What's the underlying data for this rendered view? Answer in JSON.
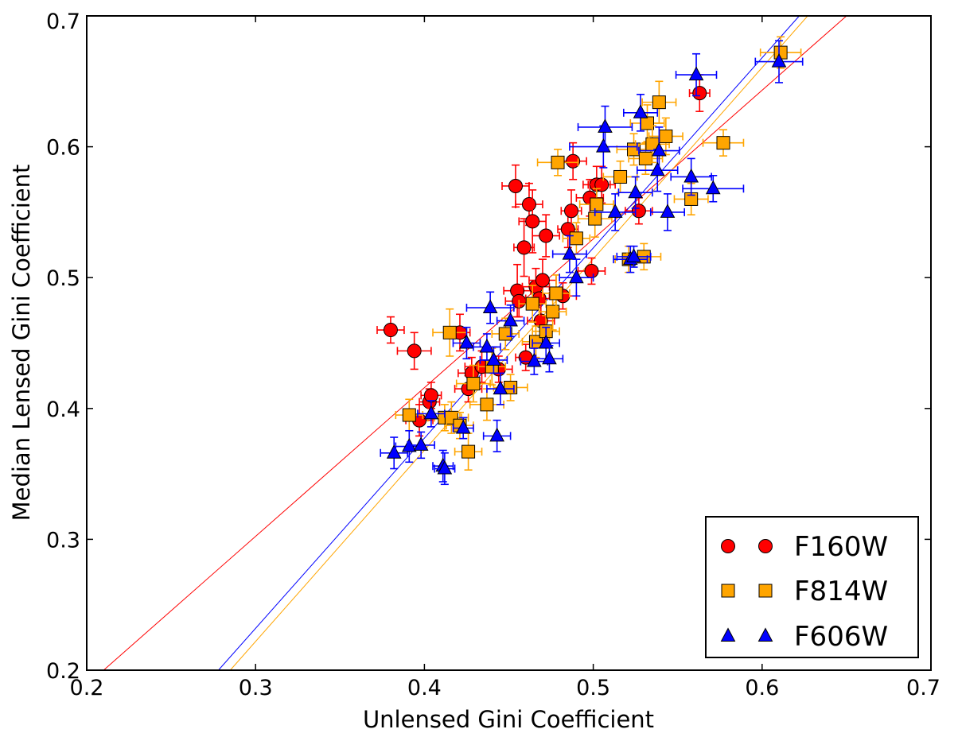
{
  "chart_data": {
    "type": "scatter",
    "xlabel": "Unlensed Gini Coefficient",
    "ylabel": "Median Lensed Gini Coefficient",
    "xlim": [
      0.2,
      0.7
    ],
    "ylim": [
      0.2,
      0.7
    ],
    "xticks": [
      "0.2",
      "0.3",
      "0.4",
      "0.5",
      "0.6",
      "0.7"
    ],
    "yticks": [
      "0.2",
      "0.3",
      "0.4",
      "0.5",
      "0.6",
      "0.7"
    ],
    "grid": false,
    "legend_position": "bottom-right",
    "series": [
      {
        "name": "F160W",
        "color": "#ff0000",
        "marker": "circle",
        "fit_line": [
          [
            0.21,
            0.2
          ],
          [
            0.65,
            0.7
          ]
        ],
        "points": [
          {
            "x": 0.38,
            "y": 0.46,
            "xerr": 0.008,
            "yerr": 0.01
          },
          {
            "x": 0.394,
            "y": 0.444,
            "xerr": 0.01,
            "yerr": 0.014
          },
          {
            "x": 0.397,
            "y": 0.391,
            "xerr": 0.008,
            "yerr": 0.012
          },
          {
            "x": 0.403,
            "y": 0.405,
            "xerr": 0.006,
            "yerr": 0.01
          },
          {
            "x": 0.404,
            "y": 0.41,
            "xerr": 0.006,
            "yerr": 0.01
          },
          {
            "x": 0.421,
            "y": 0.458,
            "xerr": 0.006,
            "yerr": 0.014
          },
          {
            "x": 0.426,
            "y": 0.415,
            "xerr": 0.008,
            "yerr": 0.01
          },
          {
            "x": 0.428,
            "y": 0.427,
            "xerr": 0.008,
            "yerr": 0.012
          },
          {
            "x": 0.434,
            "y": 0.432,
            "xerr": 0.01,
            "yerr": 0.012
          },
          {
            "x": 0.444,
            "y": 0.43,
            "xerr": 0.008,
            "yerr": 0.01
          },
          {
            "x": 0.454,
            "y": 0.57,
            "xerr": 0.008,
            "yerr": 0.016
          },
          {
            "x": 0.455,
            "y": 0.49,
            "xerr": 0.008,
            "yerr": 0.02
          },
          {
            "x": 0.456,
            "y": 0.482,
            "xerr": 0.008,
            "yerr": 0.012
          },
          {
            "x": 0.459,
            "y": 0.523,
            "xerr": 0.006,
            "yerr": 0.022
          },
          {
            "x": 0.46,
            "y": 0.439,
            "xerr": 0.006,
            "yerr": 0.01
          },
          {
            "x": 0.462,
            "y": 0.556,
            "xerr": 0.008,
            "yerr": 0.016
          },
          {
            "x": 0.464,
            "y": 0.543,
            "xerr": 0.008,
            "yerr": 0.024
          },
          {
            "x": 0.466,
            "y": 0.493,
            "xerr": 0.008,
            "yerr": 0.014
          },
          {
            "x": 0.468,
            "y": 0.484,
            "xerr": 0.008,
            "yerr": 0.014
          },
          {
            "x": 0.469,
            "y": 0.467,
            "xerr": 0.008,
            "yerr": 0.014
          },
          {
            "x": 0.47,
            "y": 0.498,
            "xerr": 0.008,
            "yerr": 0.016
          },
          {
            "x": 0.472,
            "y": 0.532,
            "xerr": 0.008,
            "yerr": 0.016
          },
          {
            "x": 0.482,
            "y": 0.486,
            "xerr": 0.008,
            "yerr": 0.01
          },
          {
            "x": 0.485,
            "y": 0.537,
            "xerr": 0.006,
            "yerr": 0.014
          },
          {
            "x": 0.487,
            "y": 0.551,
            "xerr": 0.006,
            "yerr": 0.016
          },
          {
            "x": 0.488,
            "y": 0.589,
            "xerr": 0.008,
            "yerr": 0.014
          },
          {
            "x": 0.498,
            "y": 0.561,
            "xerr": 0.008,
            "yerr": 0.014
          },
          {
            "x": 0.499,
            "y": 0.505,
            "xerr": 0.008,
            "yerr": 0.01
          },
          {
            "x": 0.502,
            "y": 0.571,
            "xerr": 0.008,
            "yerr": 0.014
          },
          {
            "x": 0.505,
            "y": 0.571,
            "xerr": 0.008,
            "yerr": 0.014
          },
          {
            "x": 0.527,
            "y": 0.551,
            "xerr": 0.008,
            "yerr": 0.01
          },
          {
            "x": 0.563,
            "y": 0.641,
            "xerr": 0.006,
            "yerr": 0.014
          }
        ]
      },
      {
        "name": "F814W",
        "color": "#ffa500",
        "marker": "square",
        "fit_line": [
          [
            0.285,
            0.2
          ],
          [
            0.627,
            0.7
          ]
        ],
        "points": [
          {
            "x": 0.391,
            "y": 0.395,
            "xerr": 0.008,
            "yerr": 0.012
          },
          {
            "x": 0.412,
            "y": 0.393,
            "xerr": 0.01,
            "yerr": 0.01
          },
          {
            "x": 0.415,
            "y": 0.458,
            "xerr": 0.01,
            "yerr": 0.018
          },
          {
            "x": 0.416,
            "y": 0.393,
            "xerr": 0.01,
            "yerr": 0.012
          },
          {
            "x": 0.421,
            "y": 0.387,
            "xerr": 0.008,
            "yerr": 0.01
          },
          {
            "x": 0.426,
            "y": 0.367,
            "xerr": 0.008,
            "yerr": 0.014
          },
          {
            "x": 0.429,
            "y": 0.419,
            "xerr": 0.01,
            "yerr": 0.014
          },
          {
            "x": 0.437,
            "y": 0.403,
            "xerr": 0.01,
            "yerr": 0.012
          },
          {
            "x": 0.44,
            "y": 0.432,
            "xerr": 0.008,
            "yerr": 0.014
          },
          {
            "x": 0.448,
            "y": 0.457,
            "xerr": 0.008,
            "yerr": 0.012
          },
          {
            "x": 0.451,
            "y": 0.416,
            "xerr": 0.01,
            "yerr": 0.01
          },
          {
            "x": 0.464,
            "y": 0.48,
            "xerr": 0.008,
            "yerr": 0.014
          },
          {
            "x": 0.466,
            "y": 0.451,
            "xerr": 0.008,
            "yerr": 0.012
          },
          {
            "x": 0.472,
            "y": 0.459,
            "xerr": 0.008,
            "yerr": 0.012
          },
          {
            "x": 0.476,
            "y": 0.474,
            "xerr": 0.008,
            "yerr": 0.014
          },
          {
            "x": 0.478,
            "y": 0.488,
            "xerr": 0.008,
            "yerr": 0.014
          },
          {
            "x": 0.479,
            "y": 0.588,
            "xerr": 0.012,
            "yerr": 0.01
          },
          {
            "x": 0.49,
            "y": 0.53,
            "xerr": 0.008,
            "yerr": 0.012
          },
          {
            "x": 0.501,
            "y": 0.545,
            "xerr": 0.01,
            "yerr": 0.014
          },
          {
            "x": 0.502,
            "y": 0.556,
            "xerr": 0.01,
            "yerr": 0.012
          },
          {
            "x": 0.516,
            "y": 0.577,
            "xerr": 0.01,
            "yerr": 0.012
          },
          {
            "x": 0.521,
            "y": 0.514,
            "xerr": 0.008,
            "yerr": 0.01
          },
          {
            "x": 0.524,
            "y": 0.598,
            "xerr": 0.01,
            "yerr": 0.012
          },
          {
            "x": 0.53,
            "y": 0.516,
            "xerr": 0.01,
            "yerr": 0.01
          },
          {
            "x": 0.531,
            "y": 0.591,
            "xerr": 0.01,
            "yerr": 0.012
          },
          {
            "x": 0.532,
            "y": 0.618,
            "xerr": 0.01,
            "yerr": 0.014
          },
          {
            "x": 0.535,
            "y": 0.602,
            "xerr": 0.01,
            "yerr": 0.014
          },
          {
            "x": 0.539,
            "y": 0.634,
            "xerr": 0.01,
            "yerr": 0.016
          },
          {
            "x": 0.543,
            "y": 0.608,
            "xerr": 0.01,
            "yerr": 0.014
          },
          {
            "x": 0.558,
            "y": 0.56,
            "xerr": 0.01,
            "yerr": 0.012
          },
          {
            "x": 0.577,
            "y": 0.603,
            "xerr": 0.012,
            "yerr": 0.01
          },
          {
            "x": 0.611,
            "y": 0.672,
            "xerr": 0.012,
            "yerr": 0.012
          }
        ]
      },
      {
        "name": "F606W",
        "color": "#0000ff",
        "marker": "triangle",
        "fit_line": [
          [
            0.278,
            0.2
          ],
          [
            0.622,
            0.7
          ]
        ],
        "points": [
          {
            "x": 0.382,
            "y": 0.366,
            "xerr": 0.008,
            "yerr": 0.012
          },
          {
            "x": 0.391,
            "y": 0.371,
            "xerr": 0.008,
            "yerr": 0.012
          },
          {
            "x": 0.398,
            "y": 0.372,
            "xerr": 0.008,
            "yerr": 0.01
          },
          {
            "x": 0.404,
            "y": 0.396,
            "xerr": 0.008,
            "yerr": 0.01
          },
          {
            "x": 0.411,
            "y": 0.356,
            "xerr": 0.006,
            "yerr": 0.012
          },
          {
            "x": 0.412,
            "y": 0.354,
            "xerr": 0.006,
            "yerr": 0.012
          },
          {
            "x": 0.423,
            "y": 0.385,
            "xerr": 0.006,
            "yerr": 0.008
          },
          {
            "x": 0.425,
            "y": 0.45,
            "xerr": 0.008,
            "yerr": 0.012
          },
          {
            "x": 0.437,
            "y": 0.447,
            "xerr": 0.008,
            "yerr": 0.01
          },
          {
            "x": 0.439,
            "y": 0.477,
            "xerr": 0.014,
            "yerr": 0.012
          },
          {
            "x": 0.441,
            "y": 0.437,
            "xerr": 0.008,
            "yerr": 0.01
          },
          {
            "x": 0.443,
            "y": 0.379,
            "xerr": 0.008,
            "yerr": 0.012
          },
          {
            "x": 0.445,
            "y": 0.415,
            "xerr": 0.008,
            "yerr": 0.012
          },
          {
            "x": 0.451,
            "y": 0.467,
            "xerr": 0.008,
            "yerr": 0.012
          },
          {
            "x": 0.465,
            "y": 0.436,
            "xerr": 0.008,
            "yerr": 0.01
          },
          {
            "x": 0.472,
            "y": 0.45,
            "xerr": 0.008,
            "yerr": 0.012
          },
          {
            "x": 0.474,
            "y": 0.438,
            "xerr": 0.008,
            "yerr": 0.01
          },
          {
            "x": 0.486,
            "y": 0.518,
            "xerr": 0.01,
            "yerr": 0.014
          },
          {
            "x": 0.49,
            "y": 0.5,
            "xerr": 0.01,
            "yerr": 0.014
          },
          {
            "x": 0.506,
            "y": 0.6,
            "xerr": 0.02,
            "yerr": 0.016
          },
          {
            "x": 0.507,
            "y": 0.615,
            "xerr": 0.016,
            "yerr": 0.016
          },
          {
            "x": 0.513,
            "y": 0.55,
            "xerr": 0.012,
            "yerr": 0.014
          },
          {
            "x": 0.522,
            "y": 0.514,
            "xerr": 0.01,
            "yerr": 0.01
          },
          {
            "x": 0.524,
            "y": 0.516,
            "xerr": 0.01,
            "yerr": 0.008
          },
          {
            "x": 0.525,
            "y": 0.565,
            "xerr": 0.01,
            "yerr": 0.012
          },
          {
            "x": 0.528,
            "y": 0.626,
            "xerr": 0.01,
            "yerr": 0.014
          },
          {
            "x": 0.538,
            "y": 0.582,
            "xerr": 0.012,
            "yerr": 0.016
          },
          {
            "x": 0.539,
            "y": 0.597,
            "xerr": 0.012,
            "yerr": 0.018
          },
          {
            "x": 0.544,
            "y": 0.55,
            "xerr": 0.01,
            "yerr": 0.014
          },
          {
            "x": 0.558,
            "y": 0.577,
            "xerr": 0.012,
            "yerr": 0.014
          },
          {
            "x": 0.561,
            "y": 0.655,
            "xerr": 0.012,
            "yerr": 0.016
          },
          {
            "x": 0.571,
            "y": 0.568,
            "xerr": 0.018,
            "yerr": 0.01
          },
          {
            "x": 0.61,
            "y": 0.665,
            "xerr": 0.014,
            "yerr": 0.016
          }
        ]
      }
    ]
  }
}
